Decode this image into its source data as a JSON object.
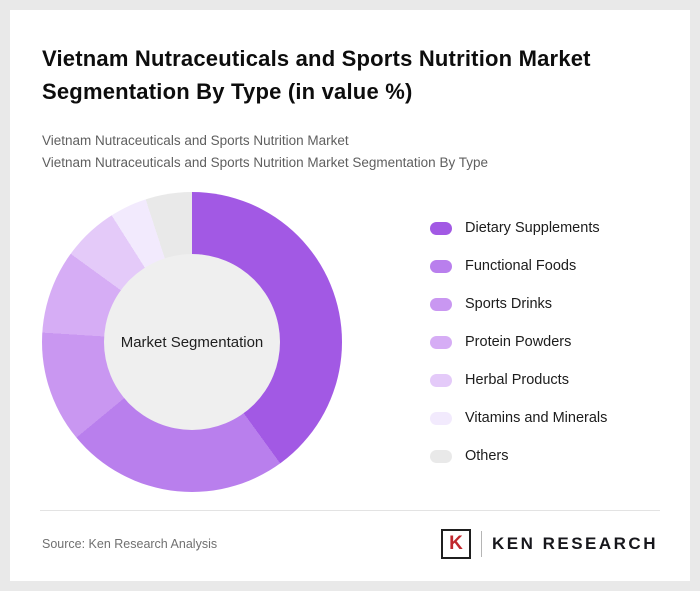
{
  "page": {
    "title": "Vietnam Nutraceuticals and Sports Nutrition Market Segmentation By Type (in value %)",
    "subtitle_line1": "Vietnam Nutraceuticals and Sports Nutrition Market",
    "subtitle_line2": "Vietnam Nutraceuticals and Sports Nutrition Market Segmentation By Type",
    "source": "Source: Ken Research Analysis",
    "logo": {
      "monogram": "K",
      "text": "KEN RESEARCH"
    }
  },
  "chart_data": {
    "type": "pie",
    "style": "donut",
    "title": "Vietnam Nutraceuticals and Sports Nutrition Market Segmentation By Type (in value %)",
    "center_label": "Market Segmentation",
    "categories": [
      "Dietary Supplements",
      "Functional Foods",
      "Sports Drinks",
      "Protein Powders",
      "Herbal Products",
      "Vitamins and Minerals",
      "Others"
    ],
    "values": [
      40,
      24,
      12,
      9,
      6,
      4,
      5
    ],
    "colors": [
      "#a259e4",
      "#b97fed",
      "#c997f1",
      "#d6adf5",
      "#e4caf9",
      "#f2eafd",
      "#e9e9e9"
    ],
    "legend_position": "right",
    "start_angle_deg": 0,
    "direction": "clockwise",
    "inner_circle_color": "#efefef"
  }
}
